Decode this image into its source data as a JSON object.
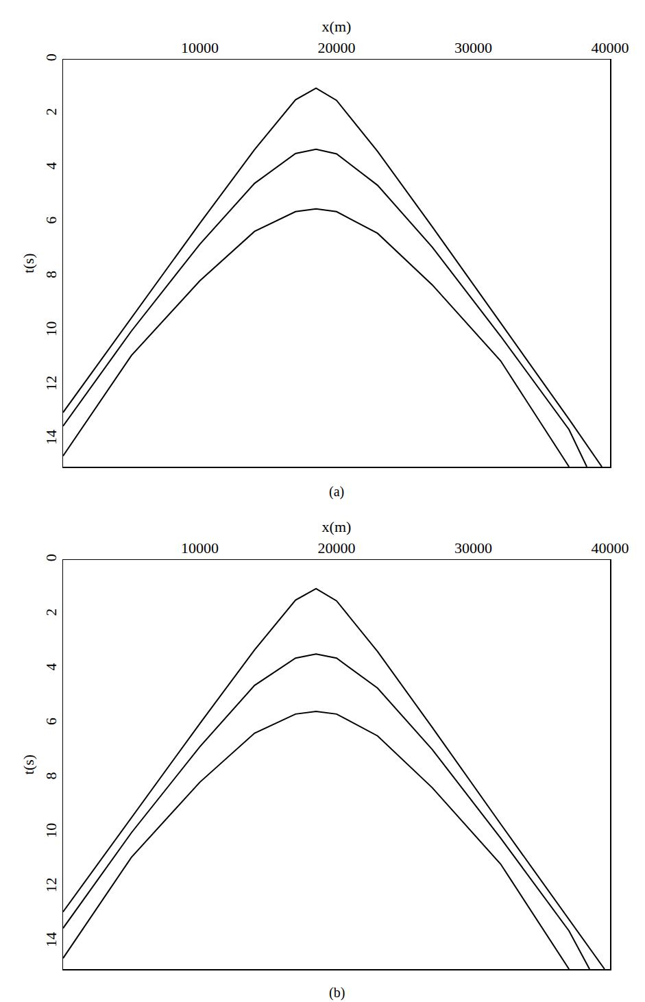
{
  "chart_data": [
    {
      "type": "line",
      "caption": "(a)",
      "x_label": "x(m)",
      "y_label": "t(s)",
      "xlim": [
        0,
        40000
      ],
      "ylim": [
        0,
        15
      ],
      "xticks": [
        10000,
        20000,
        30000,
        40000
      ],
      "yticks": [
        0,
        2,
        4,
        6,
        8,
        10,
        12,
        14
      ],
      "grid": false,
      "series": [
        {
          "color": "#000000",
          "x": [
            0,
            5000,
            10000,
            14000,
            17000,
            18500,
            20000,
            23000,
            27000,
            32000,
            37000,
            39400
          ],
          "values": [
            13.0,
            9.5,
            6.03,
            3.32,
            1.48,
            1.05,
            1.5,
            3.38,
            6.16,
            9.7,
            13.25,
            15.0
          ]
        },
        {
          "color": "#000000",
          "x": [
            0,
            5000,
            10000,
            14000,
            17000,
            18500,
            20000,
            23000,
            27000,
            32000,
            37000,
            38300
          ],
          "values": [
            13.5,
            10.0,
            6.8,
            4.56,
            3.46,
            3.3,
            3.47,
            4.63,
            6.91,
            10.19,
            13.63,
            15.0
          ]
        },
        {
          "color": "#000000",
          "x": [
            0,
            5000,
            10000,
            14000,
            17000,
            18500,
            20000,
            23000,
            27000,
            32000,
            37000
          ],
          "values": [
            14.6,
            10.9,
            8.15,
            6.33,
            5.6,
            5.5,
            5.6,
            6.4,
            8.3,
            11.1,
            15.0
          ]
        }
      ]
    },
    {
      "type": "line",
      "caption": "(b)",
      "x_label": "x(m)",
      "y_label": "t(s)",
      "xlim": [
        0,
        40000
      ],
      "ylim": [
        0,
        15
      ],
      "xticks": [
        10000,
        20000,
        30000,
        40000
      ],
      "yticks": [
        0,
        2,
        4,
        6,
        8,
        10,
        12,
        14
      ],
      "grid": false,
      "series": [
        {
          "color": "#000000",
          "x": [
            0,
            5000,
            10000,
            14000,
            17000,
            18500,
            20000,
            23000,
            27000,
            32000,
            37000,
            39600
          ],
          "values": [
            12.9,
            9.45,
            6.0,
            3.3,
            1.47,
            1.05,
            1.5,
            3.36,
            6.14,
            9.68,
            13.2,
            15.0
          ]
        },
        {
          "color": "#000000",
          "x": [
            0,
            5000,
            10000,
            14000,
            17000,
            18500,
            20000,
            23000,
            27000,
            32000,
            37000,
            38500
          ],
          "values": [
            13.5,
            10.0,
            6.85,
            4.6,
            3.6,
            3.45,
            3.6,
            4.7,
            6.95,
            10.2,
            13.6,
            15.0
          ]
        },
        {
          "color": "#000000",
          "x": [
            0,
            5000,
            10000,
            14000,
            17000,
            18500,
            20000,
            23000,
            27000,
            32000,
            37000
          ],
          "values": [
            14.6,
            10.9,
            8.15,
            6.35,
            5.65,
            5.55,
            5.65,
            6.45,
            8.35,
            11.15,
            15.0
          ]
        }
      ]
    }
  ]
}
